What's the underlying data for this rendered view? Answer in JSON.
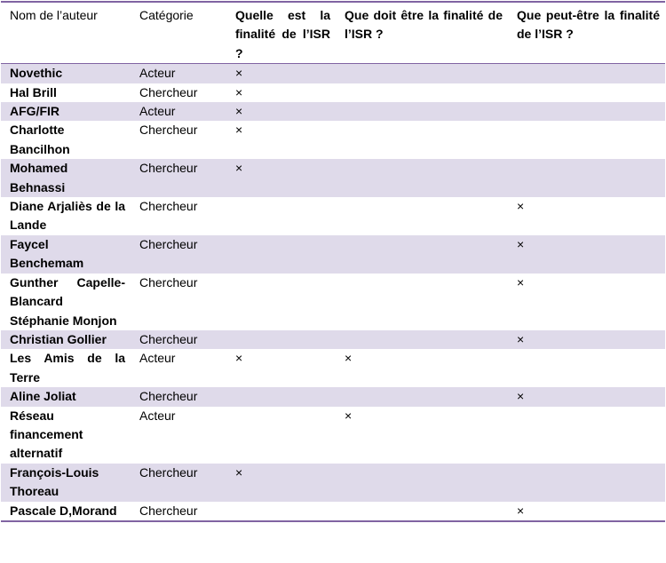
{
  "table": {
    "header": [
      "Nom de l’auteur",
      "Catégorie",
      "Quelle est la finalité de l’ISR ?",
      "Que doit être la finalité de l’ISR ?",
      "Que peut-être la finalité de l’ISR ?"
    ],
    "rows": [
      [
        "Novethic",
        "Acteur",
        "×",
        null,
        null
      ],
      [
        "Hal Brill",
        "Chercheur",
        "×",
        null,
        null
      ],
      [
        "AFG/FIR",
        "Acteur",
        "×",
        null,
        null
      ],
      [
        "Charlotte Bancilhon",
        "Chercheur",
        "×",
        null,
        null
      ],
      [
        "Mohamed Behnassi",
        "Chercheur",
        "×",
        null,
        null
      ],
      [
        "Diane Arjaliès de la Lande",
        "Chercheur",
        null,
        null,
        "×"
      ],
      [
        "Faycel Benchemam",
        "Chercheur",
        null,
        null,
        "×"
      ],
      [
        "Gunther Capelle-Blancard Stéphanie Monjon",
        "Chercheur",
        null,
        null,
        "×"
      ],
      [
        "Christian Gollier",
        "Chercheur",
        null,
        null,
        "×"
      ],
      [
        "Les Amis de la Terre",
        "Acteur",
        "×",
        "×",
        null
      ],
      [
        "Aline Joliat",
        "Chercheur",
        null,
        null,
        "×"
      ],
      [
        "Réseau financement alternatif",
        "Acteur",
        null,
        "×",
        null
      ],
      [
        "François-Louis Thoreau",
        "Chercheur",
        "×",
        null,
        null
      ],
      [
        "Pascale D,Morand",
        "Chercheur",
        null,
        null,
        "×"
      ]
    ]
  }
}
